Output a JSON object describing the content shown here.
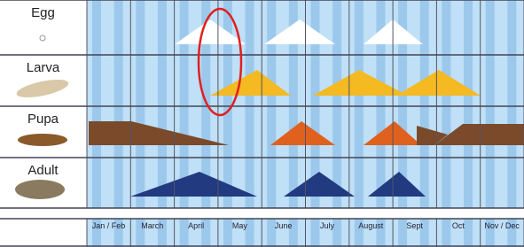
{
  "stages": [
    {
      "label": "Egg"
    },
    {
      "label": "Larva"
    },
    {
      "label": "Pupa"
    },
    {
      "label": "Adult"
    }
  ],
  "months": [
    "Jan / Feb",
    "March",
    "April",
    "May",
    "June",
    "July",
    "August",
    "Sept",
    "Oct",
    "Nov / Dec"
  ]
}
